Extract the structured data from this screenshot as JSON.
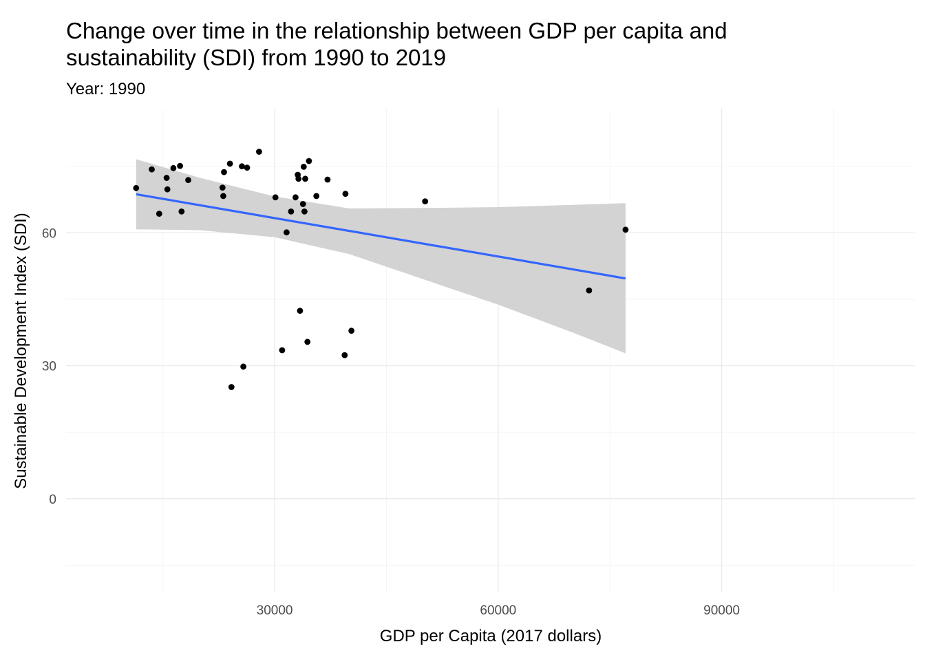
{
  "chart_data": {
    "type": "scatter",
    "title_lines": [
      "Change over time in the relationship between GDP per capita and",
      "sustainability (SDI) from 1990 to 2019"
    ],
    "subtitle": "Year: 1990",
    "xlabel": "GDP per Capita (2017 dollars)",
    "ylabel": "Sustainable Development Index (SDI)",
    "xlim": [
      2000,
      116000
    ],
    "ylim": [
      -21,
      88
    ],
    "x_ticks": [
      30000,
      60000,
      90000
    ],
    "x_tick_labels": [
      "30000",
      "60000",
      "90000"
    ],
    "y_ticks": [
      0,
      30,
      60
    ],
    "y_tick_labels": [
      "0",
      "30",
      "60"
    ],
    "grid": true,
    "legend": "none",
    "colors": {
      "points": "#000000",
      "trend_line": "#3366ff",
      "confidence_band": "#d3d3d3"
    },
    "points": [
      {
        "x": 11400,
        "y": 70.1
      },
      {
        "x": 13500,
        "y": 74.3
      },
      {
        "x": 14500,
        "y": 64.3
      },
      {
        "x": 15500,
        "y": 72.4
      },
      {
        "x": 15600,
        "y": 69.8
      },
      {
        "x": 16400,
        "y": 74.6
      },
      {
        "x": 17300,
        "y": 75.1
      },
      {
        "x": 17500,
        "y": 64.8
      },
      {
        "x": 18400,
        "y": 71.9
      },
      {
        "x": 23000,
        "y": 70.2
      },
      {
        "x": 23100,
        "y": 68.3
      },
      {
        "x": 23200,
        "y": 73.7
      },
      {
        "x": 24000,
        "y": 75.6
      },
      {
        "x": 24200,
        "y": 25.2
      },
      {
        "x": 25600,
        "y": 75.0
      },
      {
        "x": 25800,
        "y": 29.8
      },
      {
        "x": 26300,
        "y": 74.7
      },
      {
        "x": 27900,
        "y": 78.3
      },
      {
        "x": 30100,
        "y": 68.0
      },
      {
        "x": 31000,
        "y": 33.5
      },
      {
        "x": 31600,
        "y": 60.1
      },
      {
        "x": 32200,
        "y": 64.8
      },
      {
        "x": 32800,
        "y": 68.0
      },
      {
        "x": 33100,
        "y": 73.1
      },
      {
        "x": 33200,
        "y": 72.2
      },
      {
        "x": 33400,
        "y": 42.4
      },
      {
        "x": 33800,
        "y": 66.5
      },
      {
        "x": 33900,
        "y": 74.9
      },
      {
        "x": 34000,
        "y": 64.8
      },
      {
        "x": 34100,
        "y": 72.2
      },
      {
        "x": 34400,
        "y": 35.4
      },
      {
        "x": 34600,
        "y": 76.2
      },
      {
        "x": 35600,
        "y": 68.3
      },
      {
        "x": 37100,
        "y": 72.0
      },
      {
        "x": 39400,
        "y": 32.4
      },
      {
        "x": 39500,
        "y": 68.8
      },
      {
        "x": 40300,
        "y": 37.9
      },
      {
        "x": 50200,
        "y": 67.1
      },
      {
        "x": 72200,
        "y": 47.0
      },
      {
        "x": 77100,
        "y": 60.7
      }
    ],
    "trend_line": {
      "method": "lm",
      "x": [
        11400,
        77100
      ],
      "y": [
        68.7,
        49.7
      ]
    },
    "confidence_band": {
      "x": [
        11400,
        20000,
        30000,
        40000,
        50000,
        60000,
        70000,
        77100
      ],
      "lower": [
        60.8,
        60.6,
        59.0,
        55.2,
        49.5,
        43.8,
        37.5,
        32.8
      ],
      "upper": [
        76.6,
        72.4,
        68.2,
        65.5,
        65.6,
        65.8,
        66.3,
        66.7
      ]
    }
  }
}
